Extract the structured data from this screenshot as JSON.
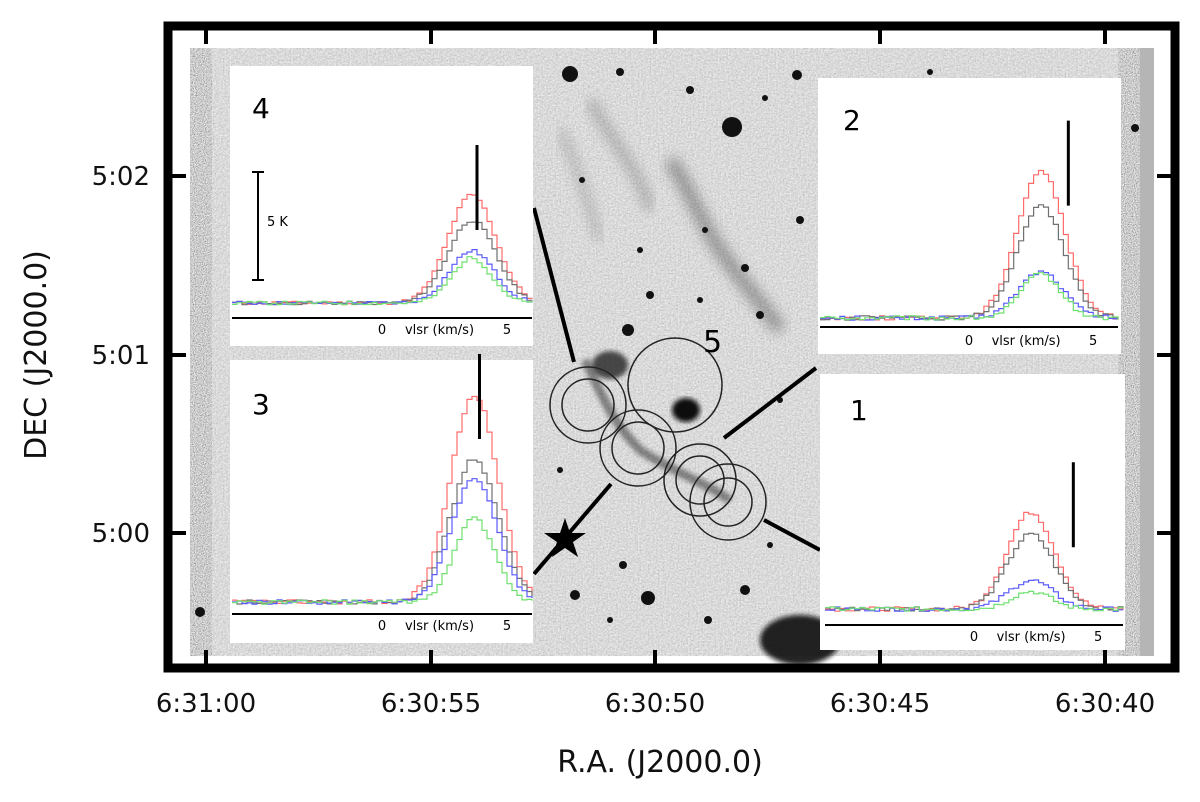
{
  "axes": {
    "x_label": "R.A. (J2000.0)",
    "y_label": "DEC (J2000.0)",
    "x_ticks": [
      "6:31:00",
      "6:30:55",
      "6:30:50",
      "6:30:45",
      "6:30:40"
    ],
    "y_ticks": [
      "5:02",
      "5:01",
      "5:00"
    ]
  },
  "image": {
    "description_icon": "grayscale-sky-image",
    "source_marker": "star-icon",
    "circles_label": "5"
  },
  "insets": [
    {
      "id": "4",
      "label": "4",
      "scale_label": "5 K",
      "x_tick_labels": [
        "0",
        "5"
      ],
      "x_axis_label": "vlsr (km/s)"
    },
    {
      "id": "3",
      "label": "3",
      "x_tick_labels": [
        "0",
        "5"
      ],
      "x_axis_label": "vlsr (km/s)"
    },
    {
      "id": "2",
      "label": "2",
      "x_tick_labels": [
        "0",
        "5"
      ],
      "x_axis_label": "vlsr (km/s)"
    },
    {
      "id": "1",
      "label": "1",
      "x_tick_labels": [
        "0",
        "5"
      ],
      "x_axis_label": "vlsr (km/s)"
    }
  ],
  "chart_data": {
    "type": "line",
    "x_label": "vlsr (km/s)",
    "series_colors": {
      "red": "#ff6b6b",
      "gray": "#707070",
      "blue": "#5a5aff",
      "green": "#6fe06f"
    },
    "spectra": [
      {
        "inset": "4",
        "peak_velocity": 3.5,
        "marker_velocity": 3.8,
        "peaks": {
          "red": 6.0,
          "gray": 4.6,
          "blue": 2.9,
          "green": 2.5
        }
      },
      {
        "inset": "3",
        "peak_velocity": 3.6,
        "marker_velocity": 3.9,
        "peaks": {
          "red": 9.4,
          "gray": 6.5,
          "blue": 5.7,
          "green": 3.8
        }
      },
      {
        "inset": "2",
        "peak_velocity": 2.8,
        "marker_velocity": 4.0,
        "peaks": {
          "red": 6.7,
          "gray": 5.1,
          "blue": 2.1,
          "green": 2.0
        }
      },
      {
        "inset": "1",
        "peak_velocity": 2.2,
        "marker_velocity": 4.0,
        "peaks": {
          "red": 4.4,
          "gray": 3.4,
          "blue": 1.3,
          "green": 0.8
        }
      }
    ]
  }
}
